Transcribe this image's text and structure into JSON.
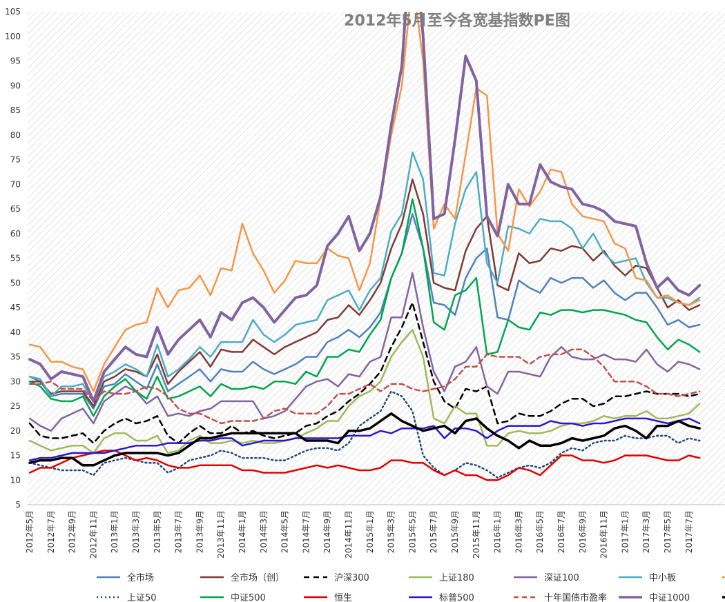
{
  "chart_data": {
    "type": "line",
    "title": "2012年5月至今各宽基指数PE图",
    "ylim": [
      5,
      105
    ],
    "yticks": [
      5,
      10,
      15,
      20,
      25,
      30,
      35,
      40,
      45,
      50,
      55,
      60,
      65,
      70,
      75,
      80,
      85,
      90,
      95,
      100,
      105
    ],
    "x": [
      "2012年5月",
      "2012年6月",
      "2012年7月",
      "2012年8月",
      "2012年9月",
      "2012年10月",
      "2012年11月",
      "2012年12月",
      "2013年1月",
      "2013年2月",
      "2013年3月",
      "2013年4月",
      "2013年5月",
      "2013年6月",
      "2013年7月",
      "2013年8月",
      "2013年9月",
      "2013年10月",
      "2013年11月",
      "2013年12月",
      "2014年1月",
      "2014年2月",
      "2014年3月",
      "2014年4月",
      "2014年5月",
      "2014年6月",
      "2014年7月",
      "2014年8月",
      "2014年9月",
      "2014年10月",
      "2014年11月",
      "2014年12月",
      "2015年1月",
      "2015年2月",
      "2015年3月",
      "2015年4月",
      "2015年5月",
      "2015年6月",
      "2015年7月",
      "2015年8月",
      "2015年9月",
      "2015年10月",
      "2015年11月",
      "2015年12月",
      "2016年1月",
      "2016年2月",
      "2016年3月",
      "2016年4月",
      "2016年5月",
      "2016年6月",
      "2016年7月",
      "2016年8月",
      "2016年9月",
      "2016年10月",
      "2016年11月",
      "2016年12月",
      "2017年1月",
      "2017年2月",
      "2017年3月",
      "2017年4月",
      "2017年5月",
      "2017年6月",
      "2017年7月",
      "2017年8月"
    ],
    "x_tick_labels": [
      "2012年5月",
      "2012年7月",
      "2012年9月",
      "2012年11月",
      "2013年1月",
      "2013年3月",
      "2013年5月",
      "2013年7月",
      "2013年9月",
      "2013年11月",
      "2014年1月",
      "2014年3月",
      "2014年5月",
      "2014年7月",
      "2014年9月",
      "2014年11月",
      "2015年1月",
      "2015年3月",
      "2015年5月",
      "2015年7月",
      "2015年9月",
      "2015年11月",
      "2016年1月",
      "2016年3月",
      "2016年5月",
      "2016年7月",
      "2016年9月",
      "2016年11月",
      "2017年1月",
      "2017年3月",
      "2017年5月",
      "2017年7月"
    ],
    "grid": false,
    "legend_position": "bottom",
    "series": [
      {
        "name": "全市场",
        "color": "#4e81bd",
        "width": 2.5,
        "dash": "",
        "values": [
          31,
          30,
          27,
          27.5,
          27.5,
          27.5,
          24.5,
          29,
          29.5,
          31.5,
          30,
          28.5,
          33.5,
          28,
          29.5,
          31,
          32.5,
          30,
          32.5,
          32,
          32,
          34,
          32.5,
          31.5,
          32.5,
          33.5,
          35,
          35,
          38,
          39,
          40.5,
          39,
          41,
          44,
          51,
          56,
          64,
          57,
          46,
          45.5,
          43.5,
          51,
          55,
          57,
          43,
          42.5,
          50.5,
          49,
          48,
          51,
          50,
          51,
          51,
          49,
          50.5,
          48,
          46.5,
          48,
          48,
          45,
          41.5,
          42.5,
          41,
          41.5
        ]
      },
      {
        "name": "全市场（创）",
        "color": "#7f3a33",
        "width": 2.5,
        "dash": "",
        "values": [
          30,
          30,
          27.5,
          28,
          28,
          28,
          25,
          30,
          31,
          32.5,
          32,
          31,
          35.5,
          29.5,
          32,
          34,
          36,
          33,
          36.5,
          36,
          36,
          38.5,
          37,
          35.5,
          37,
          38,
          39,
          40,
          42.5,
          43,
          45.5,
          43.5,
          46.5,
          50,
          57,
          62,
          71,
          64,
          50,
          49,
          48.5,
          56.5,
          61,
          63.5,
          49.5,
          48.5,
          56,
          54,
          54.5,
          57,
          56.5,
          57.5,
          57,
          54.5,
          56.5,
          53.5,
          51.5,
          53.5,
          53,
          49,
          45,
          46.5,
          44.5,
          45.5
        ]
      },
      {
        "name": "沪深300",
        "color": "#000000",
        "width": 2.5,
        "dash": "8,6",
        "values": [
          21.5,
          19,
          18.5,
          18.5,
          19,
          19.5,
          17.5,
          20,
          21.5,
          22.5,
          21.5,
          22,
          23,
          19,
          17.5,
          19.5,
          21,
          19.5,
          19.5,
          21,
          19.5,
          20,
          19,
          18.5,
          19,
          19.5,
          21,
          21.5,
          23,
          24,
          26,
          27.5,
          29.5,
          32,
          37,
          41,
          46,
          38,
          30,
          26,
          24.5,
          28.5,
          28,
          29,
          21.5,
          22,
          23.5,
          23,
          23,
          24,
          25.5,
          26.5,
          26.5,
          25,
          25.5,
          27,
          27,
          27.5,
          28,
          27.5,
          27.5,
          27.5,
          27,
          27.5
        ]
      },
      {
        "name": "上证180",
        "color": "#9bbb59",
        "width": 2.5,
        "dash": "",
        "values": [
          18,
          17,
          16,
          16.5,
          17,
          17,
          15.5,
          18.5,
          19.5,
          19.5,
          18,
          18,
          19,
          15.5,
          16,
          18,
          19,
          17.5,
          17.5,
          18,
          17.5,
          18,
          17.5,
          17.5,
          18,
          18.5,
          19.5,
          20.5,
          22,
          22,
          25,
          27,
          28,
          30,
          35,
          38,
          40.5,
          35,
          22.5,
          21.5,
          25,
          23.5,
          23.5,
          17,
          17,
          19.5,
          20,
          19.5,
          19.5,
          20,
          21,
          21.5,
          21.5,
          22,
          23,
          22.5,
          23,
          23,
          24,
          22.5,
          22.5,
          23,
          23.5,
          25.5
        ]
      },
      {
        "name": "深证100",
        "color": "#8064a2",
        "width": 2.5,
        "dash": "",
        "values": [
          22.5,
          21,
          20,
          22.5,
          23.5,
          24.5,
          21.5,
          26,
          27.5,
          29,
          28,
          25.5,
          27,
          23,
          23.5,
          23,
          24,
          24.5,
          26,
          26,
          26,
          26,
          22.5,
          23,
          24,
          26.5,
          29,
          30,
          30.5,
          29,
          31.5,
          31,
          34,
          35,
          43,
          43,
          52,
          41,
          32,
          28,
          33,
          34,
          37,
          29,
          27.5,
          32,
          32,
          31.5,
          31,
          35,
          37,
          35,
          34.5,
          34.5,
          35.5,
          34.5,
          34.5,
          34,
          36.5,
          33.5,
          32,
          34,
          33.5,
          32.5
        ]
      },
      {
        "name": "中小板",
        "color": "#4bacc6",
        "width": 2.5,
        "dash": "",
        "values": [
          31,
          30.5,
          27,
          29,
          29,
          29.5,
          26,
          31,
          32,
          33.5,
          32.5,
          31,
          37.5,
          31,
          32.5,
          34.5,
          37,
          35,
          38,
          38,
          38,
          42.5,
          39.5,
          38,
          39.5,
          41.5,
          42,
          42.5,
          46.5,
          47.5,
          48.5,
          44.5,
          48.5,
          51,
          60.5,
          64,
          76.5,
          71,
          52,
          51.5,
          62,
          69,
          72.5,
          54,
          50,
          61.5,
          61,
          60,
          63,
          62.5,
          62.5,
          61,
          57,
          60,
          56,
          54,
          54.5,
          55,
          50,
          47,
          47,
          46,
          45.5,
          47
        ]
      },
      {
        "name": "",
        "color": "#f79646",
        "width": 2.5,
        "dash": "",
        "values": [
          37.5,
          37,
          34,
          34,
          33,
          32.5,
          28,
          33.5,
          37,
          40.5,
          41.5,
          42,
          49,
          45,
          48.5,
          49,
          51.5,
          47.5,
          53,
          52.5,
          62,
          56,
          52.5,
          48,
          50.5,
          54.5,
          54,
          54,
          57,
          55.5,
          55,
          48.5,
          54,
          67,
          80,
          90,
          112,
          95,
          61,
          66,
          63,
          76,
          89.5,
          88,
          60,
          56.5,
          69,
          65.5,
          68.5,
          73,
          72.5,
          66,
          63.5,
          63,
          62.5,
          58,
          57,
          51,
          50.5,
          47,
          47.5,
          46,
          45.5,
          46.5
        ]
      },
      {
        "name": "上证50",
        "color": "#1f497d",
        "width": 2.5,
        "dash": "2,4",
        "values": [
          13.5,
          13,
          12.5,
          12,
          12,
          12,
          11,
          13.5,
          14,
          14.5,
          14,
          13.5,
          13.5,
          11.5,
          12.5,
          14,
          14.5,
          15,
          16,
          15.5,
          14.5,
          14.5,
          14.5,
          14,
          14,
          15,
          16,
          16.5,
          16.5,
          16,
          17.5,
          21,
          22.5,
          24,
          28,
          27,
          24,
          15,
          12.5,
          11,
          12,
          13.5,
          13,
          12,
          10.5,
          11.5,
          12.5,
          13,
          12.5,
          13.5,
          15.5,
          16.5,
          16,
          17.5,
          18,
          18,
          19,
          18.5,
          18.5,
          19,
          19,
          17.5,
          18.5,
          18
        ]
      },
      {
        "name": "中证500",
        "color": "#00a550",
        "width": 2.5,
        "dash": "",
        "values": [
          30,
          29,
          26.5,
          26,
          26,
          27,
          23,
          27,
          29,
          30.5,
          28,
          26.5,
          31,
          26.5,
          27,
          28,
          29,
          27,
          29.5,
          28.5,
          28.5,
          29,
          28.5,
          30,
          30,
          29.5,
          32,
          31,
          35,
          35,
          36.5,
          36,
          39.5,
          42.5,
          51,
          56,
          67,
          57,
          42,
          40.5,
          47.5,
          48.5,
          51,
          35.5,
          36,
          42.5,
          41,
          40.5,
          44,
          43.5,
          44.5,
          44.5,
          44,
          44.5,
          44.5,
          44,
          43.5,
          42.5,
          42,
          39,
          36.5,
          38.5,
          37.5,
          36
        ]
      },
      {
        "name": "恒生",
        "color": "#e00000",
        "width": 2.5,
        "dash": "",
        "values": [
          11.5,
          12.5,
          12.5,
          13.5,
          14.5,
          15,
          15.5,
          16,
          16,
          15,
          14,
          14.5,
          14,
          13,
          12.5,
          12.5,
          13,
          13,
          13,
          13,
          12,
          12,
          11.5,
          11.5,
          11.5,
          12,
          12.5,
          13,
          12.5,
          13,
          12.5,
          12,
          12,
          12.5,
          14,
          14,
          13.5,
          13.5,
          12,
          11,
          12,
          11,
          11,
          10,
          10,
          11,
          12.5,
          12,
          11,
          13,
          15,
          15,
          14,
          14,
          13.5,
          14,
          15,
          15,
          15,
          14.5,
          14,
          14,
          15,
          14.5
        ]
      },
      {
        "name": "标普500",
        "color": "#2e16c9",
        "width": 2.5,
        "dash": "",
        "values": [
          14,
          14.5,
          14.5,
          15,
          15.5,
          15.5,
          15.5,
          15.5,
          16,
          16.5,
          17,
          17,
          17,
          17.5,
          17.5,
          17.5,
          18,
          18,
          18.5,
          18.5,
          17,
          17.5,
          18,
          18,
          18,
          18.5,
          18.5,
          18.5,
          18.5,
          18.5,
          19,
          19,
          19,
          20,
          19.5,
          20.5,
          20.5,
          20.5,
          21,
          18.5,
          20.5,
          20.5,
          20,
          18.5,
          20,
          21,
          21,
          21,
          21,
          22,
          21.5,
          21.5,
          21,
          21.5,
          21.5,
          22,
          22.5,
          22.5,
          22.5,
          22,
          21.5,
          22,
          22.5,
          21.5
        ]
      },
      {
        "name": "十年国债市盈率",
        "color": "#c0504d",
        "width": 2.5,
        "dash": "7,5",
        "values": [
          29.5,
          29.5,
          30,
          28.5,
          28.5,
          28.5,
          26,
          28,
          27.5,
          27.5,
          28,
          29,
          28.5,
          27,
          24.5,
          23.5,
          23.5,
          22.5,
          21.5,
          22,
          22,
          22,
          22.5,
          24,
          24.5,
          23.5,
          23.5,
          23.5,
          25,
          27.5,
          27.5,
          28.5,
          29.5,
          28,
          29.5,
          29.5,
          28.5,
          28,
          28.5,
          29,
          30.5,
          33,
          33,
          35.5,
          35,
          35,
          35,
          33.5,
          35,
          35.5,
          35.5,
          36.5,
          36.5,
          35,
          33,
          30,
          30,
          30,
          29,
          27.5,
          27.5,
          27,
          27.5,
          28
        ]
      },
      {
        "name": "中证1000",
        "color": "#8064a2",
        "width": 4,
        "dash": "",
        "values": [
          34.5,
          33.5,
          30.5,
          32,
          31.5,
          31,
          26,
          32,
          34.5,
          37,
          35.5,
          35,
          41,
          35.5,
          38.5,
          40.5,
          42.5,
          39,
          44,
          42.5,
          46,
          47,
          45,
          42,
          44.5,
          47,
          47.5,
          49.5,
          57.5,
          60,
          63.5,
          56.5,
          60,
          67.5,
          82,
          94,
          125,
          100,
          63,
          64,
          79,
          96,
          91,
          63.5,
          59.5,
          70,
          66,
          66,
          74,
          70.5,
          69.5,
          69,
          66,
          65.5,
          64.5,
          62.5,
          62,
          61.5,
          54,
          49,
          51,
          48.5,
          47.5,
          49.5
        ]
      },
      {
        "name": "",
        "color": "#000000",
        "width": 3.5,
        "dash": "",
        "values": [
          13.5,
          14,
          14,
          14.5,
          14.5,
          13,
          13,
          14,
          15,
          15.5,
          15.5,
          15.5,
          15.5,
          15,
          15.5,
          17,
          18.5,
          18.5,
          19,
          19.5,
          19.5,
          19.5,
          19.5,
          19.5,
          19.5,
          19.5,
          18,
          18,
          18,
          17.5,
          20,
          20,
          20.5,
          22,
          23.5,
          22,
          21,
          20,
          20.5,
          21,
          19.5,
          22,
          22.5,
          20.5,
          19,
          18,
          16.5,
          18,
          17,
          17,
          17.5,
          18.5,
          18,
          18.5,
          19,
          20.5,
          21,
          20,
          18.5,
          21,
          21,
          22,
          21,
          20.5
        ]
      }
    ]
  }
}
